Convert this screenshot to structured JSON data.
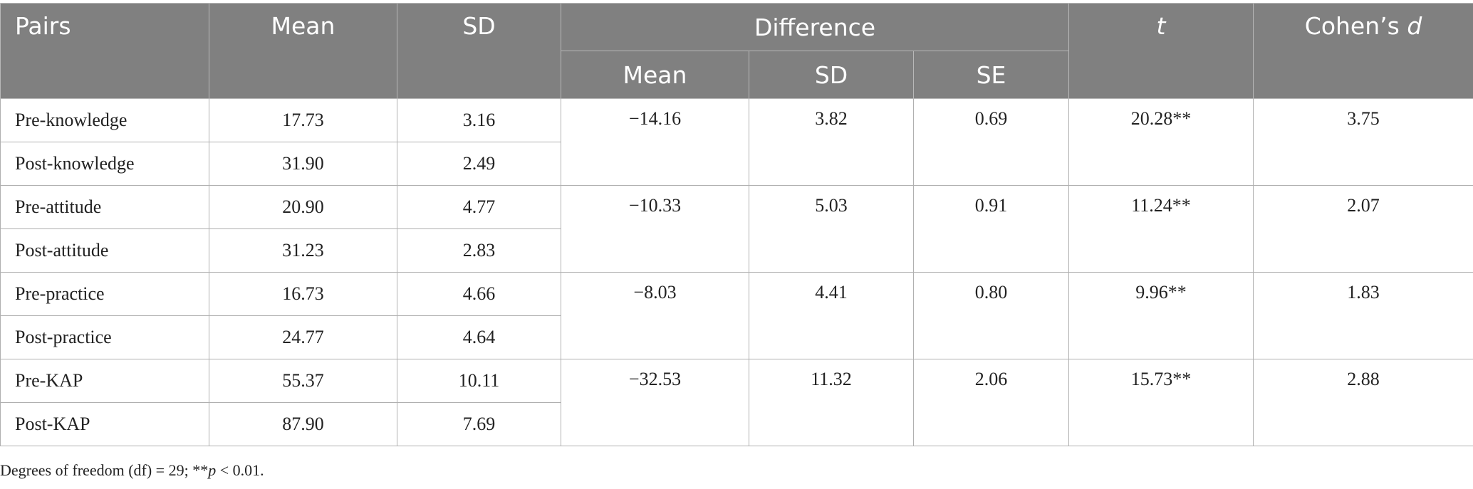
{
  "headers": {
    "pairs": "Pairs",
    "mean": "Mean",
    "sd": "SD",
    "difference": "Difference",
    "diff_mean": "Mean",
    "diff_sd": "SD",
    "diff_se": "SE",
    "t": "t",
    "cohens_prefix": "Cohen’s ",
    "cohens_d": "d"
  },
  "rows": [
    {
      "pair": "Pre-knowledge",
      "mean": "17.73",
      "sd": "3.16"
    },
    {
      "pair": "Post-knowledge",
      "mean": "31.90",
      "sd": "2.49"
    },
    {
      "pair": "Pre-attitude",
      "mean": "20.90",
      "sd": "4.77"
    },
    {
      "pair": "Post-attitude",
      "mean": "31.23",
      "sd": "2.83"
    },
    {
      "pair": "Pre-practice",
      "mean": "16.73",
      "sd": "4.66"
    },
    {
      "pair": "Post-practice",
      "mean": "24.77",
      "sd": "4.64"
    },
    {
      "pair": "Pre-KAP",
      "mean": "55.37",
      "sd": "10.11"
    },
    {
      "pair": "Post-KAP",
      "mean": "87.90",
      "sd": "7.69"
    }
  ],
  "groups": [
    {
      "diff_mean": "−14.16",
      "diff_sd": "3.82",
      "diff_se": "0.69",
      "t": "20.28**",
      "cohens_d": "3.75"
    },
    {
      "diff_mean": "−10.33",
      "diff_sd": "5.03",
      "diff_se": "0.91",
      "t": "11.24**",
      "cohens_d": "2.07"
    },
    {
      "diff_mean": "−8.03",
      "diff_sd": "4.41",
      "diff_se": "0.80",
      "t": "9.96**",
      "cohens_d": "1.83"
    },
    {
      "diff_mean": "−32.53",
      "diff_sd": "11.32",
      "diff_se": "2.06",
      "t": "15.73**",
      "cohens_d": "2.88"
    }
  ],
  "footnote": {
    "prefix": "Degrees of freedom (df) = 29; **",
    "p": "p",
    "suffix": " < 0.01."
  }
}
